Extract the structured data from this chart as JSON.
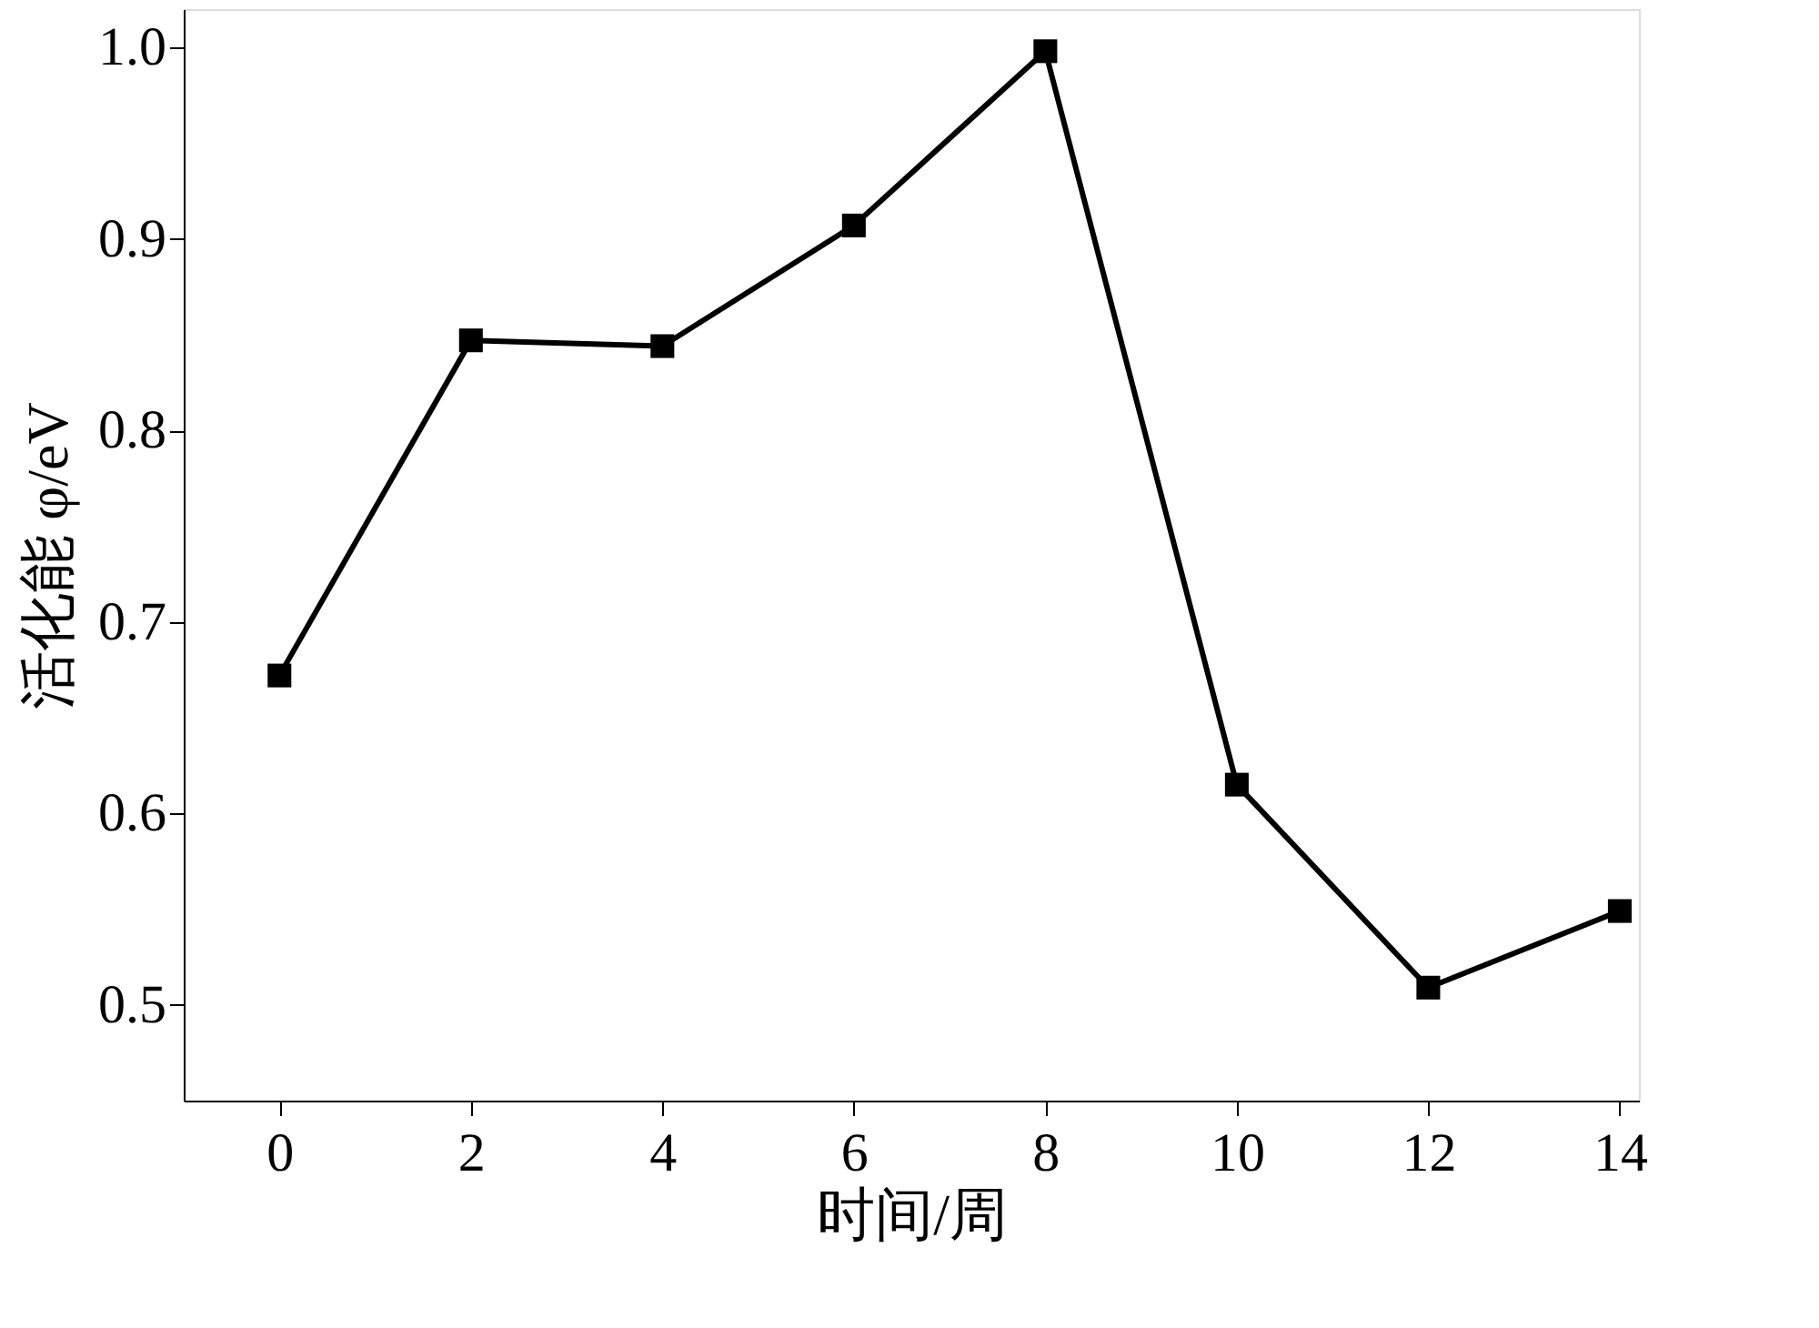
{
  "chart_data": {
    "type": "line",
    "xlabel": "时间/周",
    "ylabel": "活化能 φ/eV",
    "x": [
      0,
      2,
      4,
      6,
      8,
      10,
      12,
      14
    ],
    "series": [
      {
        "color": "#000000",
        "values": [
          0.672,
          0.847,
          0.844,
          0.907,
          0.998,
          0.615,
          0.509,
          0.549
        ]
      }
    ],
    "xlim": [
      -1,
      14.2
    ],
    "xticks": [
      0,
      2,
      4,
      6,
      8,
      10,
      12,
      14
    ],
    "ylim": [
      0.45,
      1.02
    ],
    "yticks": [
      0.5,
      0.6,
      0.7,
      0.8,
      0.9,
      {
        "value": 1,
        "label": "1.0"
      }
    ],
    "grid": false,
    "legend": false,
    "marker": "square",
    "line_style": "solid"
  }
}
